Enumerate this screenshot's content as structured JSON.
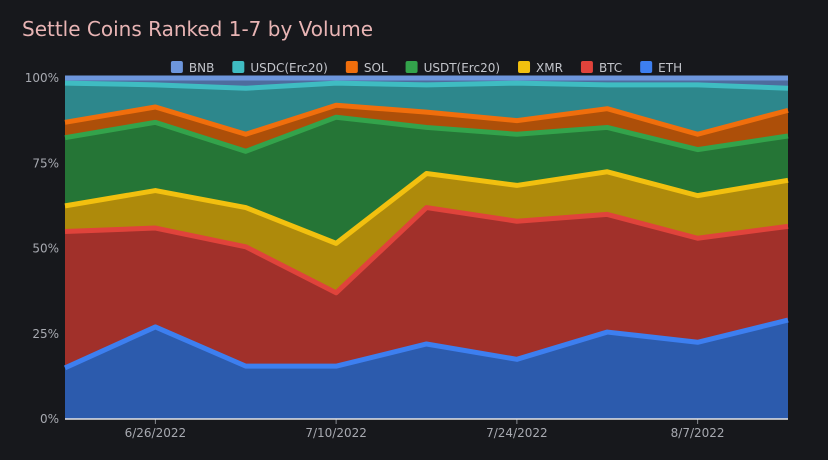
{
  "chart_data": {
    "type": "area",
    "stacked": true,
    "normalized": true,
    "title": "Settle Coins Ranked 1-7 by Volume",
    "xlabel": "",
    "ylabel": "",
    "ylim": [
      0,
      100
    ],
    "y_ticks": [
      0,
      25,
      50,
      75,
      100
    ],
    "y_tick_labels": [
      "0%",
      "25%",
      "50%",
      "75%",
      "100%"
    ],
    "x_ticks": [
      1,
      3,
      5,
      7
    ],
    "x_tick_labels": [
      "6/26/2022",
      "7/10/2022",
      "7/24/2022",
      "8/7/2022"
    ],
    "x": [
      0,
      1,
      2,
      3,
      4,
      5,
      6,
      7,
      8
    ],
    "x_range": [
      0,
      8
    ],
    "legend_position": "top",
    "series": [
      {
        "name": "ETH",
        "color": "#3d7ff0",
        "values": [
          15,
          27,
          15.5,
          15.5,
          22,
          17.5,
          25.5,
          22.5,
          29
        ]
      },
      {
        "name": "BTC",
        "color": "#e0433b",
        "values": [
          40,
          29,
          35,
          21.5,
          40,
          40.5,
          34.5,
          30.5,
          27.5
        ]
      },
      {
        "name": "XMR",
        "color": "#f2c00f",
        "values": [
          7.5,
          11,
          11.5,
          14.5,
          10,
          10.5,
          12.5,
          12.5,
          13.5
        ]
      },
      {
        "name": "USDT(Erc20)",
        "color": "#33a34b",
        "values": [
          20,
          20,
          16.5,
          37,
          13.5,
          15,
          13,
          13.5,
          13
        ]
      },
      {
        "name": "SOL",
        "color": "#f06e0c",
        "values": [
          4.5,
          4.5,
          5,
          3.5,
          4.5,
          4,
          5.5,
          4.5,
          7.5
        ]
      },
      {
        "name": "USDC(Erc20)",
        "color": "#3fbcc2",
        "values": [
          11.5,
          6.5,
          13.5,
          6.5,
          8,
          11,
          7,
          14.5,
          6.5
        ]
      },
      {
        "name": "BNB",
        "color": "#6d96dc",
        "values": [
          1.5,
          2,
          3,
          1.5,
          2,
          1.5,
          2,
          2,
          3
        ]
      }
    ],
    "legend_order": [
      "BNB",
      "USDC(Erc20)",
      "SOL",
      "USDT(Erc20)",
      "XMR",
      "BTC",
      "ETH"
    ]
  }
}
